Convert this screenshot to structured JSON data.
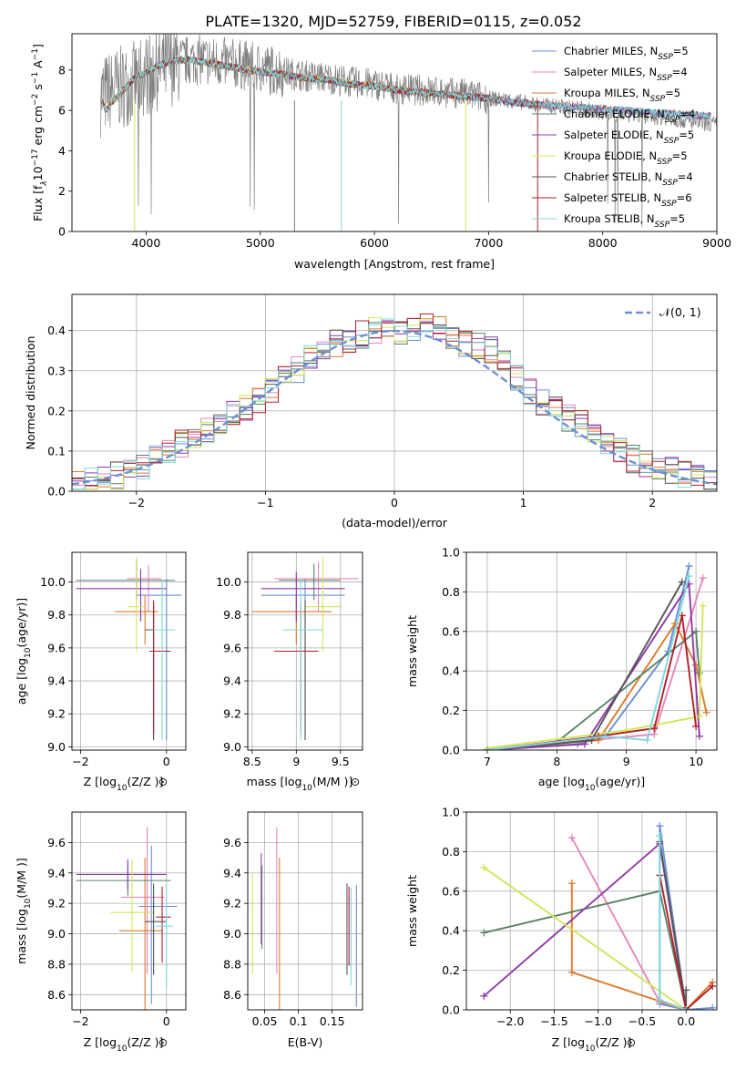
{
  "figure_title": "PLATE=1320, MJD=52759, FIBERID=0115, z=0.052",
  "models": [
    {
      "name": "Chabrier MILES",
      "nssp": "5",
      "color": "#6a8fd6"
    },
    {
      "name": "Salpeter MILES",
      "nssp": "4",
      "color": "#e687bd"
    },
    {
      "name": "Kroupa MILES",
      "nssp": "5",
      "color": "#dd7a2a"
    },
    {
      "name": "Chabrier ELODIE",
      "nssp": "4",
      "color": "#5a8466"
    },
    {
      "name": "Salpeter ELODIE",
      "nssp": "5",
      "color": "#8f3ba8"
    },
    {
      "name": "Kroupa ELODIE",
      "nssp": "5",
      "color": "#d4e45a"
    },
    {
      "name": "Chabrier STELIB",
      "nssp": "4",
      "color": "#555555"
    },
    {
      "name": "Salpeter STELIB",
      "nssp": "6",
      "color": "#b0202a"
    },
    {
      "name": "Kroupa STELIB",
      "nssp": "5",
      "color": "#7fd8dc"
    }
  ],
  "nssp_label": "N",
  "nssp_sub": "SSP",
  "chart_data": [
    {
      "id": "spectrum",
      "type": "line",
      "xlabel": "wavelength [Angstrom, rest frame]",
      "ylabel": "Flux [f",
      "ylabel_sub": "λ",
      "ylabel_rest": "10",
      "ylabel_exp": "−17",
      "ylabel_tail": " erg cm",
      "ylabel_exp2": "−2",
      "ylabel_tail2": " s",
      "ylabel_exp3": "−1",
      "ylabel_tail3": " A",
      "ylabel_exp4": "−1",
      "ylabel_end": "]",
      "xlim": [
        3350,
        9000
      ],
      "ylim": [
        0,
        9.8
      ],
      "xticks": [
        4000,
        5000,
        6000,
        7000,
        8000,
        9000
      ],
      "yticks": [
        0,
        2,
        4,
        6,
        8
      ],
      "data_color": "#808080",
      "data_series": {
        "name": "data",
        "x": [
          3600,
          3700,
          3800,
          3900,
          4000,
          4100,
          4200,
          4300,
          4400,
          4500,
          4600,
          4800,
          5000,
          5200,
          5400,
          5600,
          5800,
          6000,
          6200,
          6400,
          6600,
          6800,
          7000,
          7200,
          7400,
          7600,
          7800,
          8000,
          8200,
          8400,
          8600,
          8800,
          9000
        ],
        "y": [
          6.7,
          7.0,
          7.2,
          7.4,
          7.8,
          8.0,
          8.2,
          8.4,
          8.5,
          8.5,
          8.4,
          8.3,
          8.1,
          7.9,
          7.7,
          7.6,
          7.4,
          7.3,
          7.1,
          7.0,
          6.9,
          6.8,
          6.6,
          6.5,
          6.3,
          6.2,
          6.1,
          5.9,
          5.8,
          5.7,
          5.6,
          5.4,
          5.3
        ]
      },
      "model_x": [
        3600,
        3650,
        3700,
        3800,
        3900,
        4000,
        4100,
        4200,
        4300,
        4400,
        4500,
        4600,
        4800,
        5000,
        5200,
        5400,
        5600,
        5800,
        6000,
        6200,
        6400,
        6600,
        6800,
        7000,
        7200,
        7400
      ],
      "model_y": [
        6.6,
        6.0,
        6.4,
        7.0,
        7.6,
        7.9,
        8.2,
        8.4,
        8.5,
        8.5,
        8.4,
        8.3,
        8.1,
        7.9,
        7.8,
        7.6,
        7.5,
        7.3,
        7.2,
        7.0,
        6.9,
        6.8,
        6.7,
        6.6,
        6.4,
        6.3
      ]
    },
    {
      "id": "residuals",
      "type": "histogram",
      "xlabel": "(data-model)/error",
      "ylabel": "Normed distribution",
      "xlim": [
        -2.5,
        2.5
      ],
      "ylim": [
        0,
        0.49
      ],
      "xticks": [
        -2,
        -1,
        0,
        1,
        2
      ],
      "xtick_labels": [
        "−2",
        "−1",
        "0",
        "1",
        "2"
      ],
      "yticks": [
        0.0,
        0.1,
        0.2,
        0.3,
        0.4
      ],
      "bin_edges": [
        -2.5,
        -2.4,
        -2.3,
        -2.2,
        -2.1,
        -2.0,
        -1.9,
        -1.8,
        -1.7,
        -1.6,
        -1.5,
        -1.4,
        -1.3,
        -1.2,
        -1.1,
        -1.0,
        -0.9,
        -0.8,
        -0.7,
        -0.6,
        -0.5,
        -0.4,
        -0.3,
        -0.2,
        -0.1,
        0.0,
        0.1,
        0.2,
        0.3,
        0.4,
        0.5,
        0.6,
        0.7,
        0.8,
        0.9,
        1.0,
        1.1,
        1.2,
        1.3,
        1.4,
        1.5,
        1.6,
        1.7,
        1.8,
        1.9,
        2.0,
        2.1,
        2.2,
        2.3,
        2.4,
        2.5
      ],
      "base_density": [
        0.02,
        0.03,
        0.035,
        0.04,
        0.045,
        0.06,
        0.08,
        0.1,
        0.12,
        0.13,
        0.15,
        0.17,
        0.2,
        0.21,
        0.23,
        0.25,
        0.28,
        0.3,
        0.33,
        0.35,
        0.37,
        0.38,
        0.39,
        0.4,
        0.4,
        0.4,
        0.41,
        0.42,
        0.4,
        0.39,
        0.37,
        0.36,
        0.35,
        0.32,
        0.28,
        0.25,
        0.22,
        0.2,
        0.18,
        0.17,
        0.15,
        0.12,
        0.1,
        0.08,
        0.07,
        0.06,
        0.05,
        0.04,
        0.03,
        0.03
      ],
      "gaussian_label": "𝒩(0, 1)",
      "gaussian_color": "#6a8fd6"
    },
    {
      "id": "age_vs_Z",
      "type": "errorbar",
      "xlabel": "Z [log",
      "xlabel_sub": "10",
      "xlabel_tail": "(Z/Z",
      "xlabel_end": ")]",
      "ylabel": "age  [log",
      "ylabel_sub": "10",
      "ylabel_tail": "(age/yr)]",
      "xlim": [
        -2.2,
        0.45
      ],
      "ylim": [
        8.98,
        10.18
      ],
      "xticks": [
        -2,
        0
      ],
      "xtick_labels": [
        "−2",
        "0"
      ],
      "yticks": [
        9.0,
        9.2,
        9.4,
        9.6,
        9.8,
        10.0
      ],
      "points": [
        {
          "x": 0.0,
          "y": 9.92,
          "xerr": [
            0.7,
            0.35
          ],
          "yerr": [
            0.88,
            0.1
          ]
        },
        {
          "x": -0.42,
          "y": 10.02,
          "xerr": [
            0.5,
            0.3
          ],
          "yerr": [
            0.2,
            0.08
          ]
        },
        {
          "x": -0.5,
          "y": 9.82,
          "xerr": [
            0.7,
            0.3
          ],
          "yerr": [
            0.2,
            0.1
          ]
        },
        {
          "x": -0.7,
          "y": 10.01,
          "xerr": [
            1.4,
            0.9
          ],
          "yerr": [
            0.12,
            0.12
          ]
        },
        {
          "x": -0.6,
          "y": 9.96,
          "xerr": [
            1.5,
            0.6
          ],
          "yerr": [
            0.2,
            0.12
          ]
        },
        {
          "x": -0.7,
          "y": 9.85,
          "xerr": [
            0.2,
            0.2
          ],
          "yerr": [
            0.27,
            0.3
          ]
        },
        {
          "x": -0.3,
          "y": 9.71,
          "xerr": [
            0.2,
            0.3
          ],
          "yerr": [
            0.67,
            0.18
          ]
        },
        {
          "x": -0.3,
          "y": 9.58,
          "xerr": [
            0.1,
            0.4
          ],
          "yerr": [
            0.5,
            0.3
          ]
        },
        {
          "x": -0.1,
          "y": 9.71,
          "xerr": [
            0.2,
            0.3
          ],
          "yerr": [
            0.67,
            0.3
          ]
        }
      ]
    },
    {
      "id": "age_vs_mass",
      "type": "errorbar",
      "xlabel": "mass [log",
      "xlabel_sub": "10",
      "xlabel_tail": "(M/M",
      "xlabel_end": ")]",
      "ylabel": "",
      "xlim": [
        8.45,
        9.75
      ],
      "ylim": [
        8.98,
        10.18
      ],
      "xticks": [
        8.5,
        9.0,
        9.5
      ],
      "yticks": [
        9.0,
        9.2,
        9.4,
        9.6,
        9.8,
        10.0
      ],
      "points": [
        {
          "x": 9.1,
          "y": 9.92,
          "xerr": [
            0.5,
            0.45
          ],
          "yerr": [
            0.88,
            0.1
          ]
        },
        {
          "x": 9.25,
          "y": 10.02,
          "xerr": [
            0.5,
            0.45
          ],
          "yerr": [
            0.2,
            0.1
          ]
        },
        {
          "x": 9.0,
          "y": 9.82,
          "xerr": [
            0.5,
            0.4
          ],
          "yerr": [
            0.2,
            0.1
          ]
        },
        {
          "x": 9.2,
          "y": 10.01,
          "xerr": [
            0.4,
            0.3
          ],
          "yerr": [
            0.12,
            0.1
          ]
        },
        {
          "x": 9.0,
          "y": 9.96,
          "xerr": [
            0.4,
            0.55
          ],
          "yerr": [
            0.2,
            0.1
          ]
        },
        {
          "x": 9.3,
          "y": 9.85,
          "xerr": [
            0.2,
            0.2
          ],
          "yerr": [
            0.27,
            0.3
          ]
        },
        {
          "x": 9.1,
          "y": 9.71,
          "xerr": [
            0.2,
            0.2
          ],
          "yerr": [
            0.67,
            0.18
          ]
        },
        {
          "x": 9.05,
          "y": 9.58,
          "xerr": [
            0.3,
            0.2
          ],
          "yerr": [
            0.5,
            0.3
          ]
        },
        {
          "x": 9.05,
          "y": 9.71,
          "xerr": [
            0.2,
            0.25
          ],
          "yerr": [
            0.67,
            0.3
          ]
        }
      ]
    },
    {
      "id": "massweight_vs_age",
      "type": "line",
      "xlabel": "age  [log",
      "xlabel_sub": "10",
      "xlabel_tail": "(age/yr)]",
      "ylabel": "mass weight",
      "xlim": [
        6.7,
        10.3
      ],
      "ylim": [
        0,
        1.0
      ],
      "xticks": [
        7,
        8,
        9,
        10
      ],
      "yticks": [
        0.0,
        0.2,
        0.4,
        0.6,
        0.8,
        1.0
      ],
      "series": [
        {
          "x": [
            7.0,
            8.3,
            8.7,
            9.6,
            9.9
          ],
          "y": [
            0.0,
            0.03,
            0.07,
            0.5,
            0.93
          ]
        },
        {
          "x": [
            7.0,
            8.5,
            9.4,
            10.1
          ],
          "y": [
            0.0,
            0.05,
            0.08,
            0.87
          ]
        },
        {
          "x": [
            7.0,
            8.6,
            9.7,
            10.0,
            10.15
          ],
          "y": [
            0.0,
            0.05,
            0.64,
            0.43,
            0.19
          ]
        },
        {
          "x": [
            7.0,
            8.0,
            10.0,
            10.05
          ],
          "y": [
            0.0,
            0.04,
            0.6,
            0.39
          ]
        },
        {
          "x": [
            7.0,
            8.4,
            9.9,
            10.05
          ],
          "y": [
            0.0,
            0.03,
            0.84,
            0.07
          ]
        },
        {
          "x": [
            7.0,
            9.0,
            10.05,
            10.1
          ],
          "y": [
            0.01,
            0.1,
            0.17,
            0.73
          ]
        },
        {
          "x": [
            7.0,
            8.5,
            9.8
          ],
          "y": [
            0.0,
            0.05,
            0.85
          ]
        },
        {
          "x": [
            7.0,
            8.6,
            9.4,
            9.8,
            10.0
          ],
          "y": [
            0.0,
            0.07,
            0.11,
            0.68,
            0.12
          ]
        },
        {
          "x": [
            7.0,
            8.7,
            9.3,
            9.9
          ],
          "y": [
            0.0,
            0.07,
            0.05,
            0.88
          ]
        }
      ]
    },
    {
      "id": "mass_vs_Z",
      "type": "errorbar",
      "xlabel": "Z [log",
      "xlabel_sub": "10",
      "xlabel_tail": "(Z/Z",
      "xlabel_end": ")]",
      "ylabel": "mass [log",
      "ylabel_sub": "10",
      "ylabel_tail": "(M/M",
      "ylabel_end": ")]",
      "xlim": [
        -2.2,
        0.45
      ],
      "ylim": [
        8.5,
        9.8
      ],
      "xticks": [
        -2,
        0
      ],
      "xtick_labels": [
        "−2",
        "0"
      ],
      "yticks": [
        8.6,
        8.8,
        9.0,
        9.2,
        9.4,
        9.6
      ],
      "points": [
        {
          "x": -0.35,
          "y": 9.18,
          "xerr": [
            0.3,
            0.6
          ],
          "yerr": [
            0.64,
            0.4
          ]
        },
        {
          "x": -0.45,
          "y": 9.24,
          "xerr": [
            0.6,
            0.4
          ],
          "yerr": [
            0.5,
            0.46
          ]
        },
        {
          "x": -0.5,
          "y": 9.02,
          "xerr": [
            0.6,
            0.4
          ],
          "yerr": [
            0.52,
            0.48
          ]
        },
        {
          "x": -0.9,
          "y": 9.35,
          "xerr": [
            1.2,
            1.0
          ],
          "yerr": [
            0.1,
            0.1
          ]
        },
        {
          "x": -0.9,
          "y": 9.39,
          "xerr": [
            1.2,
            0.9
          ],
          "yerr": [
            0.1,
            0.1
          ]
        },
        {
          "x": -0.8,
          "y": 9.14,
          "xerr": [
            0.5,
            0.5
          ],
          "yerr": [
            0.39,
            0.35
          ]
        },
        {
          "x": -0.3,
          "y": 9.08,
          "xerr": [
            0.2,
            0.3
          ],
          "yerr": [
            0.35,
            0.25
          ]
        },
        {
          "x": -0.1,
          "y": 9.11,
          "xerr": [
            0.15,
            0.2
          ],
          "yerr": [
            0.3,
            0.2
          ]
        },
        {
          "x": 0.0,
          "y": 9.05,
          "xerr": [
            0.25,
            0.15
          ],
          "yerr": [
            0.4,
            0.28
          ]
        }
      ]
    },
    {
      "id": "mass_vs_ebv",
      "type": "errorbar",
      "xlabel": "E(B-V)",
      "ylabel": "",
      "xlim": [
        0.025,
        0.195
      ],
      "ylim": [
        8.5,
        9.8
      ],
      "xticks": [
        0.05,
        0.1,
        0.15
      ],
      "yticks": [
        8.6,
        8.8,
        9.0,
        9.2,
        9.4,
        9.6
      ],
      "points": [
        {
          "x": 0.186,
          "y": 8.92,
          "xerr": [
            0,
            0
          ],
          "yerr": [
            0.4,
            0.4
          ]
        },
        {
          "x": 0.068,
          "y": 9.24,
          "xerr": [
            0,
            0
          ],
          "yerr": [
            0.5,
            0.46
          ]
        },
        {
          "x": 0.072,
          "y": 9.02,
          "xerr": [
            0,
            0
          ],
          "yerr": [
            0.52,
            0.48
          ]
        },
        {
          "x": 0.046,
          "y": 9.2,
          "xerr": [
            0,
            0
          ],
          "yerr": [
            0.3,
            0.25
          ]
        },
        {
          "x": 0.045,
          "y": 9.23,
          "xerr": [
            0,
            0
          ],
          "yerr": [
            0.3,
            0.3
          ]
        },
        {
          "x": 0.032,
          "y": 9.07,
          "xerr": [
            0,
            0
          ],
          "yerr": [
            0.33,
            0.33
          ]
        },
        {
          "x": 0.172,
          "y": 9.03,
          "xerr": [
            0,
            0
          ],
          "yerr": [
            0.3,
            0.3
          ]
        },
        {
          "x": 0.175,
          "y": 9.01,
          "xerr": [
            0,
            0
          ],
          "yerr": [
            0.22,
            0.3
          ]
        },
        {
          "x": 0.178,
          "y": 8.98,
          "xerr": [
            0,
            0
          ],
          "yerr": [
            0.32,
            0.32
          ]
        }
      ]
    },
    {
      "id": "massweight_vs_Z",
      "type": "line",
      "xlabel": "Z [log",
      "xlabel_sub": "10",
      "xlabel_tail": "(Z/Z",
      "xlabel_end": ")]",
      "ylabel": "mass weight",
      "xlim": [
        -2.5,
        0.35
      ],
      "ylim": [
        0,
        1.0
      ],
      "xticks": [
        -2.0,
        -1.5,
        -1.0,
        -0.5,
        0.0
      ],
      "xtick_labels": [
        "−2.0",
        "−1.5",
        "−1.0",
        "−0.5",
        "0.0"
      ],
      "yticks": [
        0.0,
        0.2,
        0.4,
        0.6,
        0.8,
        1.0
      ],
      "series": [
        {
          "x": [
            0.3,
            0.0,
            -0.3,
            -0.3,
            0.0
          ],
          "y": [
            0.01,
            0.0,
            0.93,
            0.03,
            0.0
          ]
        },
        {
          "x": [
            -1.3,
            -0.3,
            0.0
          ],
          "y": [
            0.87,
            0.04,
            0.0
          ]
        },
        {
          "x": [
            -1.3,
            -1.3,
            0.0,
            0.3
          ],
          "y": [
            0.64,
            0.19,
            0.0,
            0.14
          ]
        },
        {
          "x": [
            -2.3,
            -0.3,
            0.0
          ],
          "y": [
            0.39,
            0.6,
            0.0
          ]
        },
        {
          "x": [
            -2.3,
            -0.3,
            0.0
          ],
          "y": [
            0.07,
            0.84,
            0.0
          ]
        },
        {
          "x": [
            -2.3,
            0.0
          ],
          "y": [
            0.72,
            0.0
          ]
        },
        {
          "x": [
            -0.3,
            0.0,
            0.0
          ],
          "y": [
            0.85,
            0.01,
            0.1
          ]
        },
        {
          "x": [
            -0.3,
            0.0,
            0.3
          ],
          "y": [
            0.68,
            0.0,
            0.12
          ]
        },
        {
          "x": [
            -0.3,
            -0.3,
            0.0
          ],
          "y": [
            0.88,
            0.05,
            0.0
          ]
        }
      ]
    }
  ]
}
